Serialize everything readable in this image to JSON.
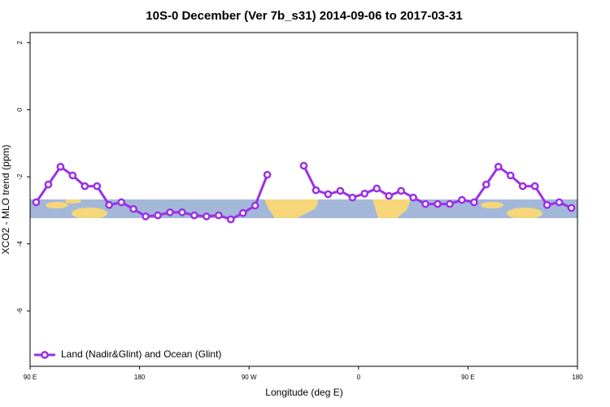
{
  "chart_data": {
    "type": "line",
    "title": "10S-0 December (Ver 7b_s31)   2014-09-06 to 2017-03-31",
    "x_label": "Longitude (deg E)",
    "y_label": "XCO2 - MLO trend (ppm)",
    "x": [
      95,
      105,
      115,
      125,
      135,
      145,
      155,
      165,
      175,
      185,
      195,
      205,
      215,
      225,
      235,
      245,
      255,
      265,
      275,
      285,
      295,
      305,
      315,
      325,
      335,
      345,
      355,
      365,
      375,
      385,
      395,
      405,
      415,
      425,
      435,
      445,
      455,
      465,
      475,
      485,
      495,
      505,
      515,
      525,
      535
    ],
    "series": [
      {
        "name": "Land (Nadir&Glint) and Ocean (Glint)",
        "color": "#9b30e6",
        "values": [
          -2.76,
          -2.23,
          -1.7,
          -1.96,
          -2.28,
          -2.28,
          -2.84,
          -2.76,
          -2.96,
          -3.18,
          -3.15,
          -3.06,
          -3.06,
          -3.15,
          -3.18,
          -3.15,
          -3.27,
          -3.08,
          -2.86,
          -1.94,
          null,
          null,
          -1.67,
          -2.4,
          -2.52,
          -2.42,
          -2.62,
          -2.5,
          -2.35,
          -2.57,
          -2.42,
          -2.62,
          -2.81,
          -2.81,
          -2.81,
          -2.69,
          -2.76,
          -2.23,
          -1.7,
          -1.96,
          -2.28,
          -2.28,
          -2.84,
          -2.76,
          -2.93
        ]
      }
    ],
    "xlim": [
      90,
      540
    ],
    "xticks": [
      {
        "value": 90,
        "label": "90 E"
      },
      180,
      {
        "value": 270,
        "label": "90 W"
      },
      {
        "value": 360,
        "label": "0"
      },
      {
        "value": 450,
        "label": "90 E"
      },
      {
        "value": 540,
        "label": "180"
      }
    ],
    "ylim": [
      -7.65,
      2.3
    ],
    "yticks": [
      2,
      0,
      -2,
      -4,
      -6
    ],
    "legend": "bottom-left"
  }
}
